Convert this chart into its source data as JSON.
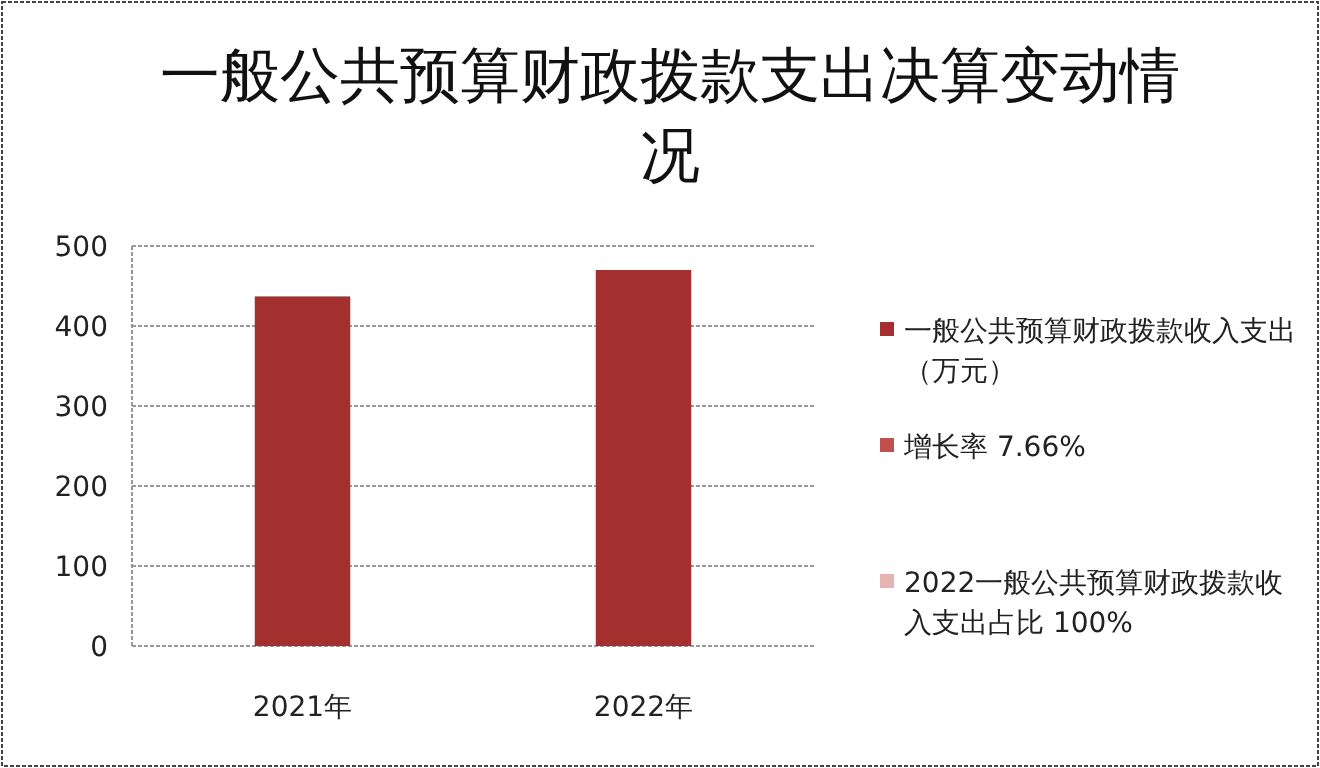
{
  "chart_data": {
    "type": "bar",
    "title": "一般公共预算财政拨款支出决算变动情况",
    "categories": [
      "2021年",
      "2022年"
    ],
    "series": [
      {
        "name": "一般公共预算财政拨款收入支出（万元）",
        "color": "#a3302f",
        "values": [
          437,
          470
        ]
      },
      {
        "name": "增长率 7.66%",
        "color": "#c0504d",
        "values": [
          null,
          null
        ]
      },
      {
        "name": "2022一般公共预算财政拨款收入支出占比 100%",
        "color": "#e6b3b3",
        "values": [
          null,
          null
        ]
      }
    ],
    "ylim": [
      0,
      500
    ],
    "yticks": [
      0,
      100,
      200,
      300,
      400,
      500
    ],
    "grid": "y",
    "legend": "right"
  }
}
